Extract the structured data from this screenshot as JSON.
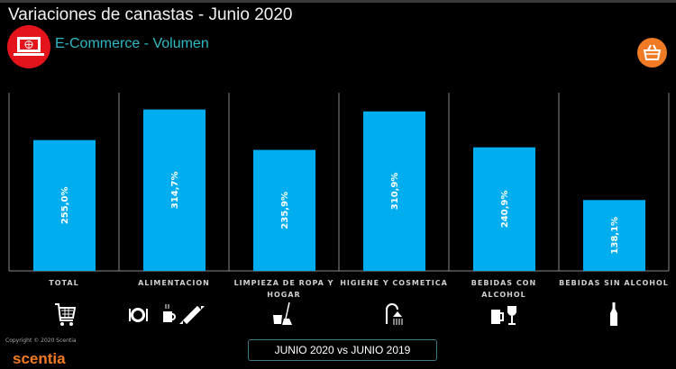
{
  "header": {
    "title": "Variaciones de canastas - Junio 2020",
    "subtitle": "E-Commerce - Volumen",
    "title_icon": "laptop-globe-icon",
    "corner_icon": "shopping-basket-icon"
  },
  "colors": {
    "bar": "#00AEEF",
    "subtitle": "#2fb9c4",
    "accent_orange": "#f07b24",
    "accent_red": "#e3141b"
  },
  "chart_data": {
    "type": "bar",
    "categories": [
      "TOTAL",
      "ALIMENTACION",
      "LIMPIEZA DE ROPA Y HOGAR",
      "HIGIENE Y COSMETICA",
      "BEBIDAS CON ALCOHOL",
      "BEBIDAS SIN ALCOHOL"
    ],
    "values": [
      255.0,
      314.7,
      235.9,
      310.9,
      240.9,
      138.1
    ],
    "data_labels": [
      "255,0%",
      "314,7%",
      "235,9%",
      "310,9%",
      "240,9%",
      "138,1%"
    ],
    "title": "",
    "xlabel": "",
    "ylabel": "",
    "ylim": [
      0,
      350
    ],
    "grid": false,
    "category_icons": [
      "shopping-cart-icon",
      "food-coffee-candy-icon",
      "bucket-broom-icon",
      "shower-icon",
      "beer-wine-icon",
      "bottle-icon"
    ]
  },
  "footer": {
    "period": "JUNIO 2020 vs JUNIO 2019",
    "copyright": "Copyright © 2020 Scentia",
    "logo": "scentia"
  }
}
